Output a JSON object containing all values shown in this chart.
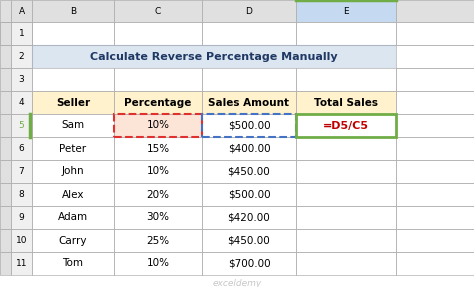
{
  "title": "Calculate Reverse Percentage Manually",
  "title_bg": "#dce6f1",
  "headers": [
    "Seller",
    "Percentage",
    "Sales Amount",
    "Total Sales"
  ],
  "header_bg": "#fff2cc",
  "rows": [
    [
      "Sam",
      "10%",
      "$500.00",
      "=D5/C5"
    ],
    [
      "Peter",
      "15%",
      "$400.00",
      ""
    ],
    [
      "John",
      "10%",
      "$450.00",
      ""
    ],
    [
      "Alex",
      "20%",
      "$500.00",
      ""
    ],
    [
      "Adam",
      "30%",
      "$420.00",
      ""
    ],
    [
      "Carry",
      "25%",
      "$450.00",
      ""
    ],
    [
      "Tom",
      "10%",
      "$700.00",
      ""
    ]
  ],
  "col_labels": [
    "A",
    "B",
    "C",
    "D",
    "E"
  ],
  "formula_color": "#c00000",
  "highlight_c5_border": "#e03030",
  "highlight_d5_border": "#4472c4",
  "highlight_e5_border": "#70ad47",
  "cell_bg_pink": "#fce4d6",
  "grid_color": "#b0b0b0",
  "col_header_bg": "#e0e0e0",
  "row_header_bg": "#f0f0f0",
  "row5_header_bg": "#e8e8e8",
  "title_bg_border": "#aec6e8",
  "watermark_color": "#b0b0b0",
  "fig_bg": "#ffffff",
  "col_header_E_bg": "#c5daf0",
  "row5_label_color": "#70ad47",
  "cell_white": "#ffffff"
}
